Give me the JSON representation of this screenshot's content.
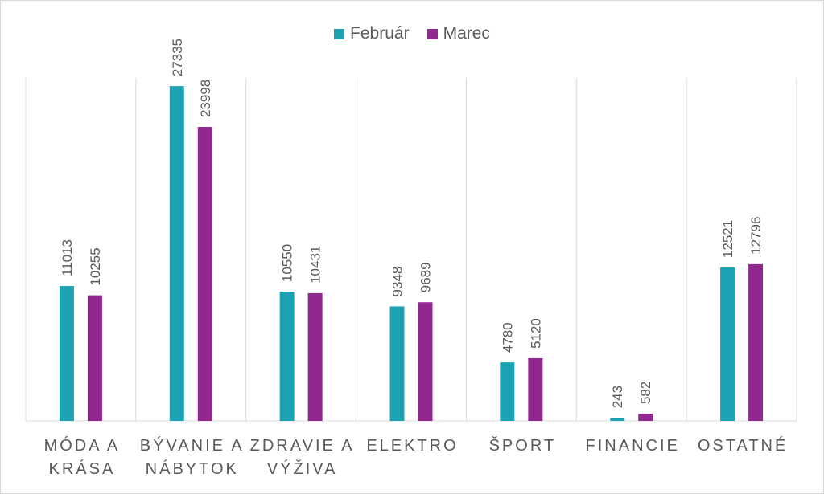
{
  "chart_data": {
    "type": "bar",
    "categories": [
      [
        "MÓDA A",
        "KRÁSA"
      ],
      [
        "BÝVANIE A",
        "NÁBYTOK"
      ],
      [
        "ZDRAVIE A",
        "VÝŽIVA"
      ],
      [
        "ELEKTRO"
      ],
      [
        "ŠPORT"
      ],
      [
        "FINANCIE"
      ],
      [
        "OSTATNÉ"
      ]
    ],
    "series": [
      {
        "name": "Február",
        "color": "#1ba3b4",
        "values": [
          11013,
          27335,
          10550,
          9348,
          4780,
          243,
          12521
        ]
      },
      {
        "name": "Marec",
        "color": "#92278f",
        "values": [
          10255,
          23998,
          10431,
          9689,
          5120,
          582,
          12796
        ]
      }
    ],
    "ylim": [
      0,
      28000
    ],
    "grid": "vertical-category-separators",
    "legend_position": "top",
    "data_labels": "rotated-vertical"
  }
}
